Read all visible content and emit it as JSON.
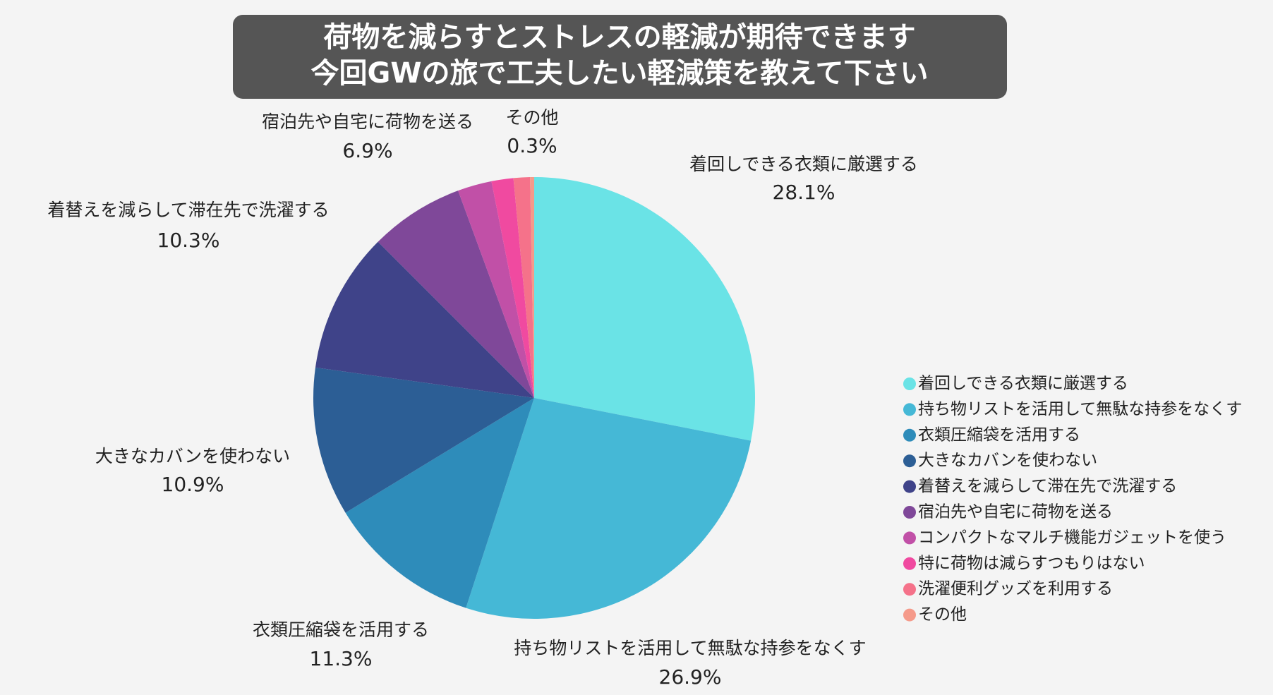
{
  "chart_data": {
    "type": "pie",
    "title": [
      "荷物を減らすとストレスの軽減が期待できます",
      "今回GWの旅で工夫したい軽減策を教えて下さい"
    ],
    "categories": [
      "着回しできる衣類に厳選する",
      "持ち物リストを活用して無駄な持参をなくす",
      "衣類圧縮袋を活用する",
      "大きなカバンを使わない",
      "着替えを減らして滞在先で洗濯する",
      "宿泊先や自宅に荷物を送る",
      "コンパクトなマルチ機能ガジェットを使う",
      "特に荷物は減らすつもりはない",
      "洗濯便利グッズを利用する",
      "その他"
    ],
    "values": [
      28.1,
      26.9,
      11.3,
      10.9,
      10.3,
      6.9,
      2.5,
      1.6,
      1.2,
      0.3
    ],
    "value_labels": [
      "28.1%",
      "26.9%",
      "11.3%",
      "10.9%",
      "10.3%",
      "6.9%",
      null,
      null,
      null,
      "0.3%"
    ],
    "colors": [
      "#6ae3e6",
      "#45b8d6",
      "#2e8cba",
      "#2c5e95",
      "#3f4389",
      "#7f4899",
      "#c150a7",
      "#f04aa0",
      "#f5728a",
      "#f59a8a"
    ],
    "legend": "right"
  }
}
